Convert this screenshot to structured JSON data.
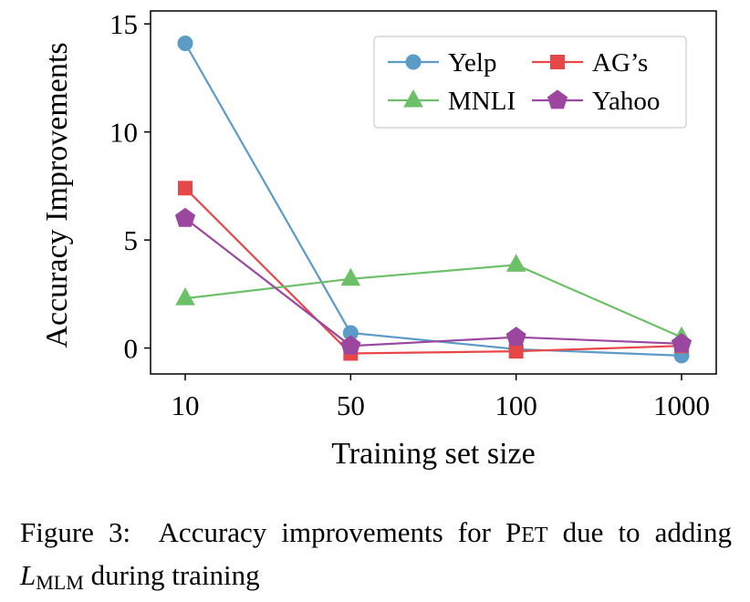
{
  "chart_data": {
    "type": "line",
    "xlabel": "Training set size",
    "ylabel": "Accuracy Improvements",
    "categories": [
      "10",
      "50",
      "100",
      "1000"
    ],
    "ylim": [
      -1.2,
      15.6
    ],
    "yticks": [
      0,
      5,
      10,
      15
    ],
    "grid": false,
    "legend": "top-right",
    "series": [
      {
        "name": "Yelp",
        "values": [
          14.1,
          0.7,
          -0.05,
          -0.35
        ],
        "color": "#5b9bc8",
        "marker": "circle"
      },
      {
        "name": "AG’s",
        "values": [
          7.4,
          -0.25,
          -0.15,
          0.1
        ],
        "color": "#e8474a",
        "marker": "square"
      },
      {
        "name": "MNLI",
        "values": [
          2.3,
          3.2,
          3.85,
          0.5
        ],
        "color": "#6cc068",
        "marker": "triangle"
      },
      {
        "name": "Yahoo",
        "values": [
          6.0,
          0.1,
          0.5,
          0.2
        ],
        "color": "#9b47a0",
        "marker": "pentagon"
      }
    ]
  },
  "caption": {
    "label": "Figure 3:",
    "text1": "Accuracy improvements for ",
    "pet_p": "P",
    "pet_rest": "ET",
    "text2": " due to adding ",
    "math_l": "L",
    "math_sub": "MLM",
    "text3": " during training"
  }
}
